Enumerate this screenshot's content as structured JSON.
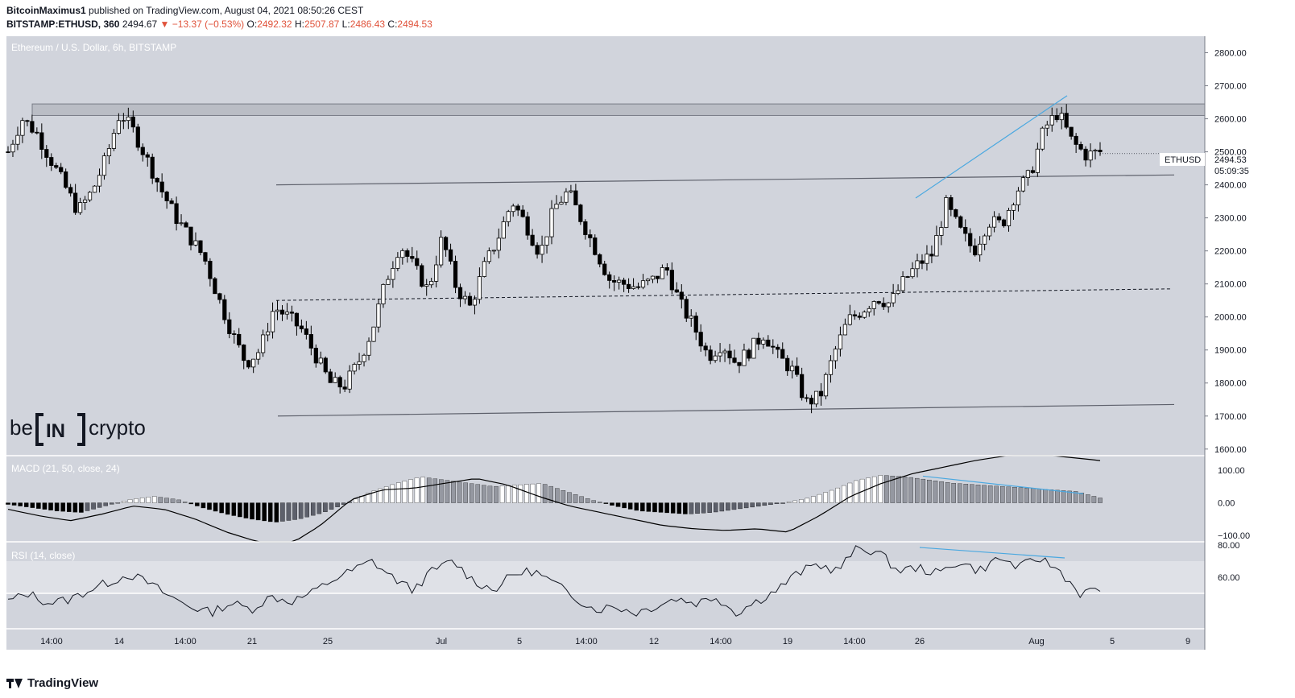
{
  "header": {
    "author": "BitcoinMaximus1",
    "published_text": "published on TradingView.com, August 04, 2021 08:50:26 CEST",
    "symbol": "BITSTAMP:ETHUSD, 360",
    "last": "2494.67",
    "change": "−13.37 (−0.53%)",
    "o_label": "O:",
    "o": "2492.32",
    "h_label": "H:",
    "h": "2507.87",
    "l_label": "L:",
    "l": "2486.43",
    "c_label": "C:",
    "c": "2494.53"
  },
  "chart_title": "Ethereum / U.S. Dollar, 6h, BITSTAMP",
  "currency_label": "USD",
  "price_tag": {
    "symbol": "ETHUSD",
    "price": "2494.53",
    "countdown": "05:09:35"
  },
  "watermark": {
    "left": "be",
    "mid": "IN",
    "right": "crypto"
  },
  "footer": {
    "brand": "TradingView"
  },
  "colors": {
    "background": "#d1d4dc",
    "candle_up": "#ffffff",
    "candle_down": "#000000",
    "trendline": "#4aa8e0",
    "rsi_band": "#dfe1e7"
  },
  "chart_data": [
    {
      "type": "candlestick",
      "series_name": "ETHUSD",
      "y_ticks": [
        "2800.00",
        "2700.00",
        "2600.00",
        "2500.00",
        "2400.00",
        "2300.00",
        "2200.00",
        "2100.00",
        "2000.00",
        "1900.00",
        "1800.00",
        "1700.00",
        "1600.00"
      ],
      "ylim": [
        1580,
        2850
      ],
      "x_ticks": [
        "14:00",
        "14",
        "14:00",
        "21",
        "25",
        "Jul",
        "5",
        "14:00",
        "12",
        "14:00",
        "19",
        "14:00",
        "26",
        "Aug",
        "5",
        "9"
      ],
      "candles_anchor_closes": [
        2500,
        2600,
        2560,
        2480,
        2400,
        2320,
        2380,
        2480,
        2620,
        2560,
        2470,
        2380,
        2300,
        2240,
        2180,
        2060,
        1950,
        1860,
        1900,
        2030,
        2000,
        1960,
        1880,
        1800,
        1790,
        1860,
        1960,
        2110,
        2220,
        2150,
        2080,
        2240,
        2090,
        2030,
        2150,
        2240,
        2350,
        2280,
        2190,
        2330,
        2380,
        2290,
        2200,
        2110,
        2100,
        2090,
        2110,
        2150,
        2040,
        1970,
        1880,
        1920,
        1860,
        1900,
        1950,
        1880,
        1840,
        1740,
        1760,
        1890,
        1990,
        2020,
        2060,
        2040,
        2110,
        2160,
        2190,
        2340,
        2260,
        2200,
        2290,
        2280,
        2380,
        2430,
        2570,
        2620,
        2530,
        2490,
        2500
      ],
      "resistance_zone": [
        2610,
        2645
      ],
      "channel_upper": {
        "from": 2400,
        "to": 2430
      },
      "channel_mid": {
        "from": 2050,
        "to": 2085
      },
      "channel_lower": {
        "from": 1700,
        "to": 1735
      },
      "current_price": 2494.53
    },
    {
      "type": "bar",
      "name": "MACD (21, 50, close, 24)",
      "y_ticks": [
        "100.00",
        "0.00",
        "−100.00"
      ],
      "ylim": [
        -120,
        145
      ],
      "histogram_anchors": [
        -5,
        -15,
        -25,
        -30,
        -10,
        10,
        20,
        10,
        -15,
        -35,
        -50,
        -60,
        -50,
        -30,
        0,
        35,
        60,
        80,
        70,
        60,
        50,
        55,
        60,
        35,
        10,
        -10,
        -25,
        -30,
        -35,
        -30,
        -20,
        -10,
        0,
        15,
        40,
        70,
        85,
        80,
        70,
        60,
        55,
        50,
        45,
        40,
        35,
        15
      ],
      "macd_line_anchors": [
        -20,
        -40,
        -55,
        -35,
        -10,
        -20,
        -50,
        -90,
        -120,
        -130,
        -70,
        10,
        40,
        45,
        60,
        75,
        55,
        20,
        -10,
        -30,
        -50,
        -70,
        -80,
        -85,
        -80,
        -90,
        -40,
        20,
        60,
        90,
        110,
        130,
        145,
        150,
        140,
        130
      ]
    },
    {
      "type": "line",
      "name": "RSI (14, close)",
      "y_ticks": [
        "80.00",
        "60.00"
      ],
      "ylim": [
        28,
        82
      ],
      "band": [
        50,
        70
      ],
      "rsi_anchors": [
        45,
        50,
        44,
        46,
        52,
        57,
        62,
        56,
        48,
        42,
        38,
        44,
        40,
        48,
        45,
        50,
        58,
        64,
        70,
        60,
        52,
        64,
        70,
        58,
        52,
        62,
        64,
        56,
        48,
        40,
        42,
        38,
        42,
        47,
        44,
        48,
        38,
        45,
        52,
        62,
        68,
        64,
        78,
        76,
        64,
        66,
        62,
        70,
        64,
        72,
        66,
        72,
        64,
        50,
        52
      ]
    }
  ]
}
